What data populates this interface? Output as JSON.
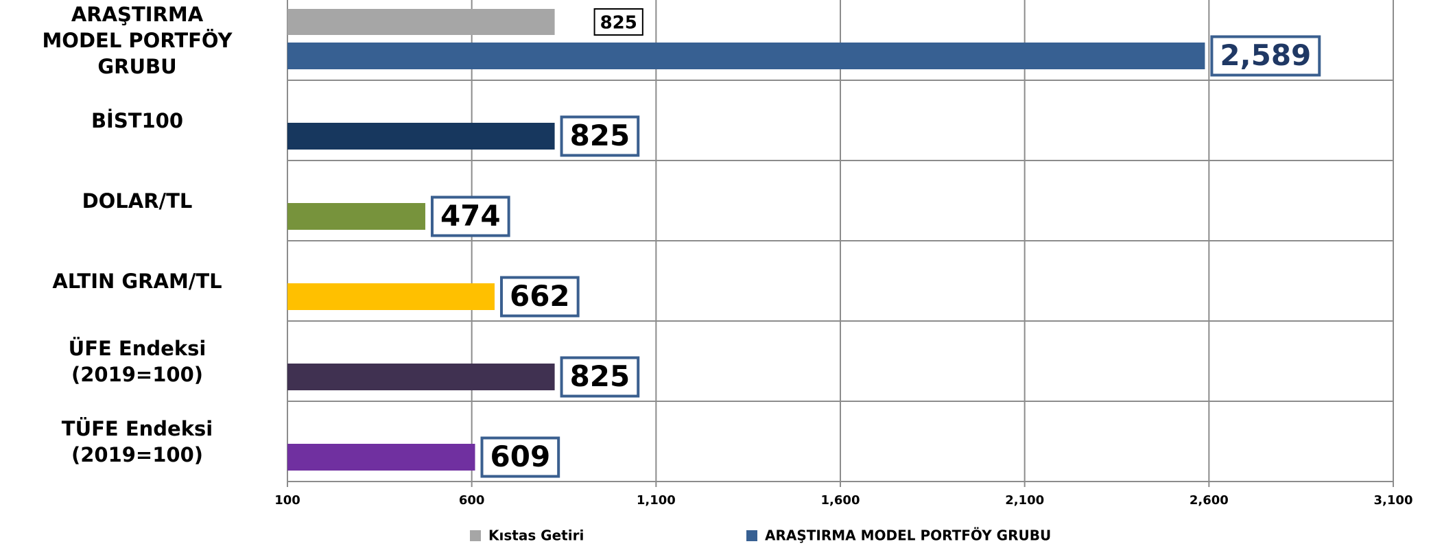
{
  "chart_data": {
    "type": "bar",
    "orientation": "horizontal",
    "categories": [
      "ARAŞTIRMA\nMODEL PORTFÖY\nGRUBU",
      "BİST100",
      "DOLAR/TL",
      "ALTIN GRAM/TL",
      "ÜFE Endeksi\n(2019=100)",
      "TÜFE Endeksi\n(2019=100)"
    ],
    "series": [
      {
        "name": "Kıstas Getiri",
        "color": "#a6a6a6",
        "values": [
          825,
          null,
          null,
          null,
          null,
          null
        ],
        "value_labels": [
          "825",
          null,
          null,
          null,
          null,
          null
        ]
      },
      {
        "name": "ARAŞTIRMA MODEL PORTFÖY GRUBU",
        "color": "#376092",
        "colors": [
          "#376092",
          "#17375e",
          "#77933c",
          "#ffc000",
          "#403151",
          "#7030a0"
        ],
        "value_label_colors": [
          "#1f3864",
          "#000000",
          "#000000",
          "#000000",
          "#000000",
          "#000000"
        ],
        "values": [
          2589,
          825,
          474,
          662,
          825,
          609
        ],
        "value_labels": [
          "2,589",
          "825",
          "474",
          "662",
          "825",
          "609"
        ]
      }
    ],
    "xlim": [
      100,
      3100
    ],
    "xticks": [
      100,
      600,
      {
        "value": 1100,
        "label": "1,100"
      },
      {
        "value": 1600,
        "label": "1,600"
      },
      {
        "value": 2100,
        "label": "2,100"
      },
      {
        "value": 2600,
        "label": "2,600"
      },
      {
        "value": 3100,
        "label": "3,100"
      }
    ],
    "grid": true,
    "legend": "bottom"
  }
}
